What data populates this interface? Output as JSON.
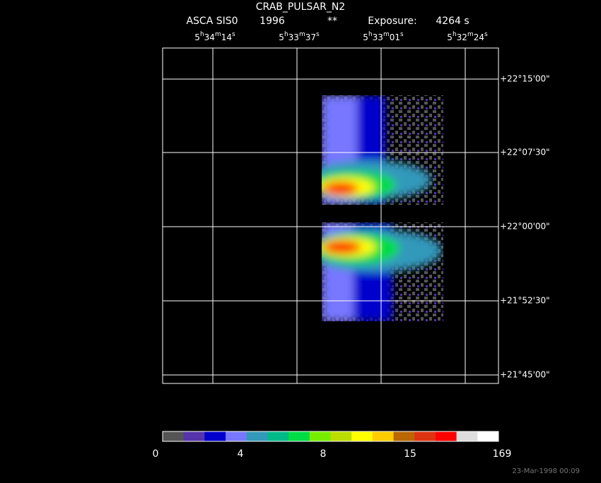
{
  "header": {
    "title": "CRAB_PULSAR_N2",
    "subtitle": [
      "ASCA SIS0",
      "1996",
      "**",
      "Exposure:",
      "4264 s"
    ]
  },
  "ra_labels": [
    [
      "5",
      "h",
      "34",
      "m",
      "14",
      "s"
    ],
    [
      "5",
      "h",
      "33",
      "m",
      "37",
      "s"
    ],
    [
      "5",
      "h",
      "33",
      "m",
      "01",
      "s"
    ],
    [
      "5",
      "h",
      "32",
      "m",
      "24",
      "s"
    ]
  ],
  "dec_labels": [
    "+22°15'00\"",
    "+22°07'30\"",
    "+22°00'00\"",
    "+21°52'30\"",
    "+21°45'00\""
  ],
  "colorbar": {
    "colors": [
      "#555555",
      "#5533aa",
      "#0000cc",
      "#7777ff",
      "#3399bb",
      "#00bb88",
      "#00dd44",
      "#77ee00",
      "#bbdd00",
      "#ffff00",
      "#ffcc00",
      "#bb6600",
      "#dd3311",
      "#ff0000",
      "#dddddd",
      "#ffffff"
    ],
    "labels": [
      "0",
      "4",
      "8",
      "15",
      "169"
    ]
  },
  "footer": "23-Mar-1998 00:09"
}
